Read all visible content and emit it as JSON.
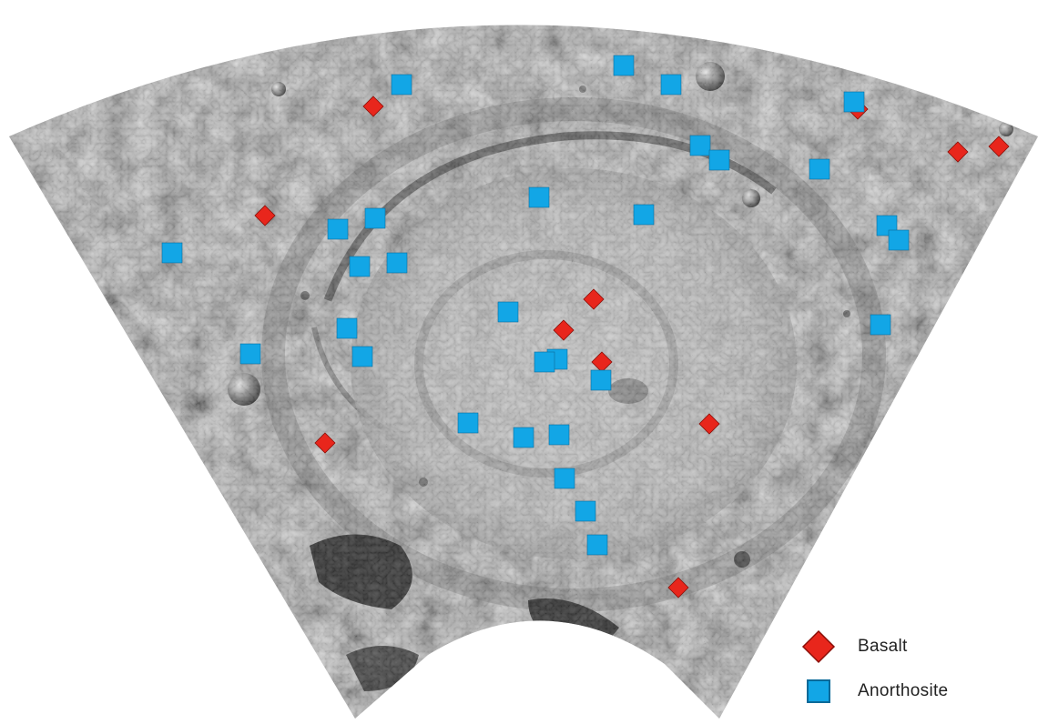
{
  "colors": {
    "basalt": "#e8261c",
    "basalt_outline": "#8a0f08",
    "anorthosite": "#12a6e6",
    "anorthosite_outline": "#0a6a99",
    "background": "#ffffff"
  },
  "legend": {
    "items": [
      {
        "symbol": "diamond",
        "label": "Basalt"
      },
      {
        "symbol": "square",
        "label": "Anorthosite"
      }
    ]
  },
  "markers": {
    "basalt": [
      [
        410,
        117
      ],
      [
        291,
        237
      ],
      [
        652,
        329
      ],
      [
        619,
        363
      ],
      [
        661,
        398
      ],
      [
        779,
        466
      ],
      [
        357,
        487
      ],
      [
        745,
        646
      ],
      [
        942,
        120
      ],
      [
        1052,
        167
      ],
      [
        1097,
        161
      ]
    ],
    "anorthosite": [
      [
        441,
        93
      ],
      [
        685,
        72
      ],
      [
        737,
        93
      ],
      [
        938,
        112
      ],
      [
        769,
        160
      ],
      [
        790,
        176
      ],
      [
        900,
        186
      ],
      [
        592,
        217
      ],
      [
        707,
        236
      ],
      [
        412,
        240
      ],
      [
        371,
        252
      ],
      [
        974,
        248
      ],
      [
        987,
        264
      ],
      [
        189,
        278
      ],
      [
        395,
        293
      ],
      [
        436,
        289
      ],
      [
        558,
        343
      ],
      [
        381,
        361
      ],
      [
        967,
        357
      ],
      [
        275,
        389
      ],
      [
        398,
        392
      ],
      [
        612,
        395
      ],
      [
        598,
        398
      ],
      [
        660,
        418
      ],
      [
        514,
        465
      ],
      [
        575,
        481
      ],
      [
        614,
        478
      ],
      [
        620,
        526
      ],
      [
        643,
        562
      ],
      [
        656,
        599
      ]
    ]
  }
}
